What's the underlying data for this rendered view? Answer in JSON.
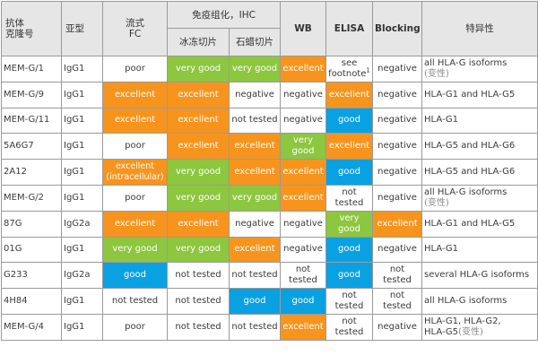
{
  "colors": {
    "excellent": "#f7941d",
    "very good": "#8dc63f",
    "good": "#0aa1e3",
    "plain": "#ffffff",
    "header_bg": "#e6e6e6"
  },
  "headers": {
    "clone": "抗体\n克隆号",
    "subtype": "亚型",
    "fc": "流式\nFC",
    "ihc_group": "免疫组化，IHC",
    "ihc_frozen": "冰冻切片",
    "ihc_paraffin": "石蜡切片",
    "wb": "WB",
    "elisa": "ELISA",
    "blocking": "Blocking",
    "specificity": "特异性"
  },
  "rows": [
    {
      "clone": "MEM-G/1",
      "subtype": "IgG1",
      "cells": [
        {
          "text": "poor",
          "level": "plain"
        },
        {
          "text": "very good",
          "level": "very good"
        },
        {
          "text": "very good",
          "level": "very good"
        },
        {
          "text": "excellent",
          "level": "excellent"
        },
        {
          "text": "see\nfootnote",
          "sup": "1",
          "level": "plain"
        },
        {
          "text": "negative",
          "level": "plain"
        }
      ],
      "spec": "all HLA-G isoforms",
      "spec_note": "(变性)"
    },
    {
      "clone": "MEM-G/9",
      "subtype": "IgG1",
      "cells": [
        {
          "text": "excellent",
          "level": "excellent"
        },
        {
          "text": "excellent",
          "level": "excellent"
        },
        {
          "text": "negative",
          "level": "plain"
        },
        {
          "text": "negative",
          "level": "plain"
        },
        {
          "text": "excellent",
          "level": "excellent"
        },
        {
          "text": "negative",
          "level": "plain"
        }
      ],
      "spec": "HLA-G1 and HLA-G5",
      "spec_note": ""
    },
    {
      "clone": "MEM-G/11",
      "subtype": "IgG1",
      "cells": [
        {
          "text": "excellent",
          "level": "excellent"
        },
        {
          "text": "excellent",
          "level": "excellent"
        },
        {
          "text": "not tested",
          "level": "plain"
        },
        {
          "text": "negative",
          "level": "plain"
        },
        {
          "text": "good",
          "level": "good"
        },
        {
          "text": "negative",
          "level": "plain"
        }
      ],
      "spec": "HLA-G1",
      "spec_note": ""
    },
    {
      "clone": "5A6G7",
      "subtype": "IgG1",
      "cells": [
        {
          "text": "poor",
          "level": "plain"
        },
        {
          "text": "excellent",
          "level": "excellent"
        },
        {
          "text": "excellent",
          "level": "excellent"
        },
        {
          "text": "very\ngood",
          "level": "very good"
        },
        {
          "text": "excellent",
          "level": "excellent"
        },
        {
          "text": "negative",
          "level": "plain"
        }
      ],
      "spec": "HLA-G5 and HLA-G6",
      "spec_note": ""
    },
    {
      "clone": "2A12",
      "subtype": "IgG1",
      "cells": [
        {
          "text": "excellent\n(intracellular)",
          "level": "excellent"
        },
        {
          "text": "very good",
          "level": "very good"
        },
        {
          "text": "excellent",
          "level": "excellent"
        },
        {
          "text": "excellent",
          "level": "excellent"
        },
        {
          "text": "good",
          "level": "good"
        },
        {
          "text": "negative",
          "level": "plain"
        }
      ],
      "spec": "HLA-G5 and HLA-G6",
      "spec_note": ""
    },
    {
      "clone": "MEM-G/2",
      "subtype": "IgG1",
      "cells": [
        {
          "text": "poor",
          "level": "plain"
        },
        {
          "text": "very good",
          "level": "very good"
        },
        {
          "text": "very good",
          "level": "very good"
        },
        {
          "text": "excellent",
          "level": "excellent"
        },
        {
          "text": "not\ntested",
          "level": "plain"
        },
        {
          "text": "negative",
          "level": "plain"
        }
      ],
      "spec": "all HLA-G isoforms",
      "spec_note": "(变性)"
    },
    {
      "clone": "87G",
      "subtype": "IgG2a",
      "cells": [
        {
          "text": "excellent",
          "level": "excellent"
        },
        {
          "text": "excellent",
          "level": "excellent"
        },
        {
          "text": "negative",
          "level": "plain"
        },
        {
          "text": "negative",
          "level": "plain"
        },
        {
          "text": "very\ngood",
          "level": "very good"
        },
        {
          "text": "excellent",
          "level": "excellent"
        }
      ],
      "spec": "HLA-G1 and HLA-G5",
      "spec_note": ""
    },
    {
      "clone": "01G",
      "subtype": "IgG1",
      "cells": [
        {
          "text": "very good",
          "level": "very good"
        },
        {
          "text": "very good",
          "level": "very good"
        },
        {
          "text": "excellent",
          "level": "excellent"
        },
        {
          "text": "negative",
          "level": "plain"
        },
        {
          "text": "good",
          "level": "good"
        },
        {
          "text": "negative",
          "level": "plain"
        }
      ],
      "spec": "HLA-G1",
      "spec_note": ""
    },
    {
      "clone": "G233",
      "subtype": "IgG2a",
      "cells": [
        {
          "text": "good",
          "level": "good"
        },
        {
          "text": "not tested",
          "level": "plain"
        },
        {
          "text": "not tested",
          "level": "plain"
        },
        {
          "text": "not\ntested",
          "level": "plain"
        },
        {
          "text": "good",
          "level": "good"
        },
        {
          "text": "not tested",
          "level": "plain"
        }
      ],
      "spec": "several HLA-G isoforms",
      "spec_note": ""
    },
    {
      "clone": "4H84",
      "subtype": "IgG1",
      "cells": [
        {
          "text": "not tested",
          "level": "plain"
        },
        {
          "text": "not tested",
          "level": "plain"
        },
        {
          "text": "good",
          "level": "good"
        },
        {
          "text": "good",
          "level": "good"
        },
        {
          "text": "not tested",
          "level": "plain"
        },
        {
          "text": "not tested",
          "level": "plain"
        }
      ],
      "spec": "all HLA-G isoforms",
      "spec_note": ""
    },
    {
      "clone": "MEM-G/4",
      "subtype": "IgG1",
      "cells": [
        {
          "text": "poor",
          "level": "plain"
        },
        {
          "text": "not tested",
          "level": "plain"
        },
        {
          "text": "not tested",
          "level": "plain"
        },
        {
          "text": "excellent",
          "level": "excellent"
        },
        {
          "text": "not\ntested",
          "level": "plain"
        },
        {
          "text": "negative",
          "level": "plain"
        }
      ],
      "spec": "HLA-G1, HLA-G2,\nHLA-G5",
      "spec_note": "(变性)"
    }
  ]
}
